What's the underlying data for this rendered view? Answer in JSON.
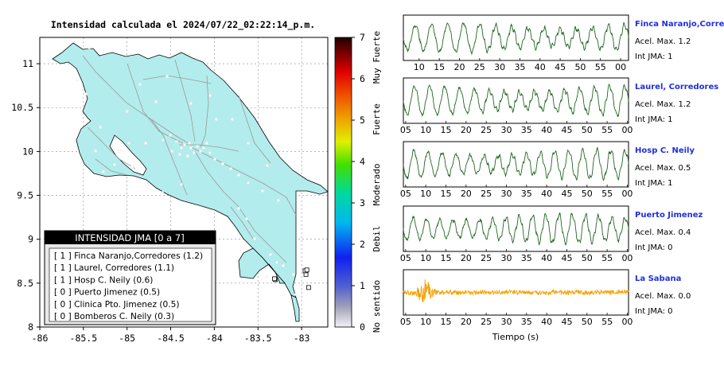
{
  "map": {
    "title": "Intensidad calculada el 2024/07/22_02:22:14_p.m.",
    "x_ticks": [
      "-86",
      "-85.5",
      "-85",
      "-84.5",
      "-84",
      "-83.5",
      "-83"
    ],
    "y_ticks": [
      "11",
      "10.5",
      "10",
      "9.5",
      "9",
      "8.5",
      "8"
    ],
    "xlim": [
      -86,
      -82.7
    ],
    "ylim": [
      8,
      11.3
    ],
    "land_color": "#b3ecec",
    "grid": true
  },
  "colorbar": {
    "ticks": [
      "0",
      "1",
      "2",
      "3",
      "4",
      "5",
      "6",
      "7"
    ],
    "range": [
      0,
      7
    ],
    "level_labels": [
      "No sentido",
      "Debil",
      "Moderado",
      "Fuerte",
      "Muy Fuerte"
    ]
  },
  "legend": {
    "header": "INTENSIDAD JMA [0 a 7]",
    "rows": [
      "[ 1 ]  Finca Naranjo,Corredores (1.2)",
      "[ 1 ]  Laurel, Corredores (1.1)",
      "[ 1 ]  Hosp C. Neily (0.6)",
      "[ 0 ]  Puerto Jimenez (0.5)",
      "[ 0 ]  Clinica Pto. Jimenez (0.5)",
      "[ 0 ]  Bomberos C. Neily (0.3)"
    ]
  },
  "chart_data": [
    {
      "type": "scatter",
      "title": "Intensidad calculada el 2024/07/22_02:22:14_p.m.",
      "xlim": [
        -86,
        -82.7
      ],
      "ylim": [
        8,
        11.3
      ],
      "points": [
        {
          "name": "Finca Naranjo,Corredores",
          "x": -82.95,
          "y": 8.6,
          "value": 1.2,
          "jma": 1
        },
        {
          "name": "Laurel, Corredores",
          "x": -82.92,
          "y": 8.45,
          "value": 1.1,
          "jma": 1
        },
        {
          "name": "Hosp C. Neily",
          "x": -82.96,
          "y": 8.64,
          "value": 0.6,
          "jma": 1
        },
        {
          "name": "Puerto Jimenez",
          "x": -83.3,
          "y": 8.54,
          "value": 0.5,
          "jma": 0
        },
        {
          "name": "Clinica Pto. Jimenez",
          "x": -83.31,
          "y": 8.55,
          "value": 0.5,
          "jma": 0
        },
        {
          "name": "Bomberos C. Neily",
          "x": -82.94,
          "y": 8.65,
          "value": 0.3,
          "jma": 0
        }
      ]
    },
    {
      "type": "line",
      "xlabel": "Tiempo (s)",
      "stations": [
        {
          "name": "Finca Naranjo,Corredores",
          "acel_label": "Acel. Max. 1.2",
          "jma_label": "Int JMA: 1",
          "color": "#226622",
          "ticks": [
            "10",
            "15",
            "20",
            "25",
            "30",
            "35",
            "40",
            "45",
            "50",
            "55",
            "00",
            "05"
          ]
        },
        {
          "name": "Laurel, Corredores",
          "acel_label": "Acel. Max. 1.2",
          "jma_label": "Int JMA: 1",
          "color": "#226622",
          "ticks": [
            "05",
            "10",
            "15",
            "20",
            "25",
            "30",
            "35",
            "40",
            "45",
            "50",
            "55",
            "00",
            "05"
          ]
        },
        {
          "name": "Hosp C. Neily",
          "acel_label": "Acel. Max. 0.5",
          "jma_label": "Int JMA: 1",
          "color": "#226622",
          "ticks": [
            "05",
            "10",
            "15",
            "20",
            "25",
            "30",
            "35",
            "40",
            "45",
            "50",
            "55",
            "00",
            "05"
          ]
        },
        {
          "name": "Puerto Jimenez",
          "acel_label": "Acel. Max. 0.4",
          "jma_label": "Int JMA: 0",
          "color": "#226622",
          "ticks": [
            "05",
            "10",
            "15",
            "20",
            "25",
            "30",
            "35",
            "40",
            "45",
            "50",
            "55",
            "00",
            "05"
          ]
        },
        {
          "name": "La Sabana",
          "acel_label": "Acel. Max. 0.0",
          "jma_label": "Int JMA: 0",
          "color": "#f5a000",
          "ticks": [
            "05",
            "10",
            "15",
            "20",
            "25",
            "30",
            "35",
            "40",
            "45",
            "50",
            "55",
            "00"
          ]
        }
      ]
    }
  ]
}
